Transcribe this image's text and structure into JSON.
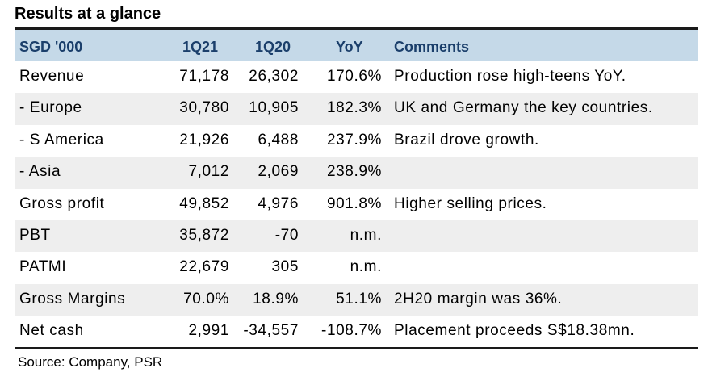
{
  "title": "Results at a glance",
  "header": {
    "label": "SGD '000",
    "col1": "1Q21",
    "col2": "1Q20",
    "col3": "YoY",
    "col4": "Comments"
  },
  "rows": [
    {
      "label": "Revenue",
      "q21": "71,178",
      "q20": "26,302",
      "yoy": "170.6%",
      "comment": "Production rose high-teens YoY."
    },
    {
      "label": " - Europe",
      "q21": "30,780",
      "q20": "10,905",
      "yoy": "182.3%",
      "comment": "UK and Germany the key countries."
    },
    {
      "label": " - S America",
      "q21": "21,926",
      "q20": "6,488",
      "yoy": "237.9%",
      "comment": "Brazil drove growth."
    },
    {
      "label": " - Asia",
      "q21": "7,012",
      "q20": "2,069",
      "yoy": "238.9%",
      "comment": ""
    },
    {
      "label": "Gross profit",
      "q21": "49,852",
      "q20": "4,976",
      "yoy": "901.8%",
      "comment": "Higher selling prices."
    },
    {
      "label": "PBT",
      "q21": "35,872",
      "q20": "-70",
      "yoy": "n.m.",
      "comment": ""
    },
    {
      "label": "PATMI",
      "q21": "22,679",
      "q20": "305",
      "yoy": "n.m.",
      "comment": ""
    },
    {
      "label": "Gross Margins",
      "q21": "70.0%",
      "q20": "18.9%",
      "yoy": "51.1%",
      "comment": "2H20 margin was 36%."
    },
    {
      "label": "Net cash",
      "q21": "2,991",
      "q20": "-34,557",
      "yoy": "-108.7%",
      "comment": "Placement proceeds S$18.38mn."
    }
  ],
  "source": "Source: Company, PSR",
  "colors": {
    "header_bg": "#c5d9e8",
    "header_text": "#1b3f6b",
    "shade": "#eeeeee"
  }
}
